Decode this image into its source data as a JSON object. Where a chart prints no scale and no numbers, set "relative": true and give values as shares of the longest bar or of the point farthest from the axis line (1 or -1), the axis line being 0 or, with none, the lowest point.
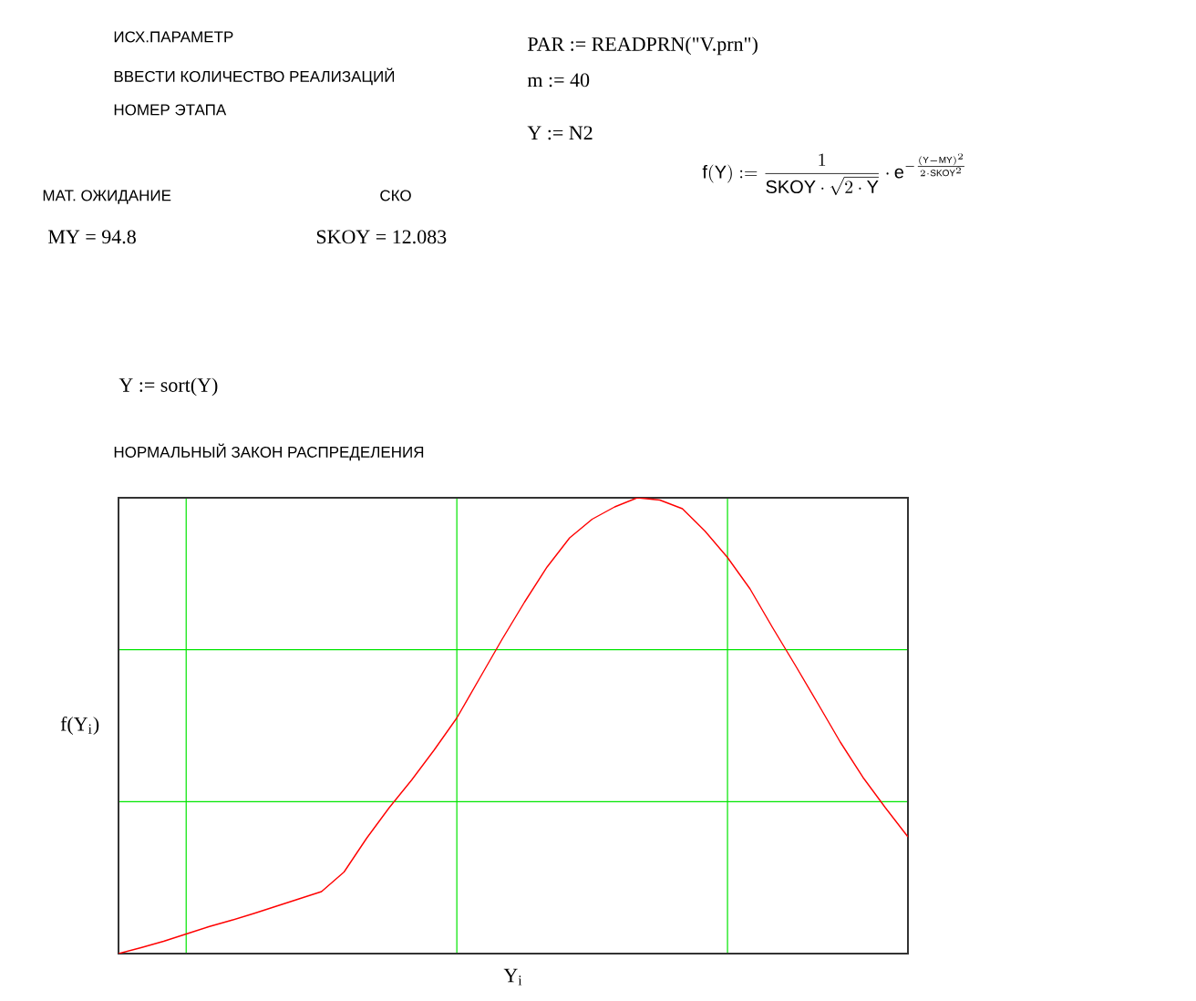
{
  "chart_data": {
    "type": "line",
    "title": "НОРМАЛЬНЫЙ ЗАКОН РАСПРЕДЕЛЕНИЯ",
    "xlabel": "Y$_{i}$",
    "ylabel": "f(Y$_{i}$)",
    "annotations": [
      "ИСХ.ПАРАМЕТР",
      "ВВЕСТИ КОЛИЧЕСТВО РЕАЛИЗАЦИЙ",
      "НОМЕР ЭТАПА",
      "PAR := READPRN(\"V.prn\")",
      "m := 40",
      "Y := N2",
      "МАТ. ОЖИДАНИЕ",
      "СКО",
      "MY = 94.8",
      "SKOY = 12.083",
      "\\mathrm{f(Y)} := \\frac{1}{\\mathrm{SKOY}\\cdot\\sqrt{2\\cdot\\mathrm{Y}}}\\cdot\\mathrm{e}^{-\\frac{(\\mathrm{Y}-\\mathrm{MY})^{2}}{2\\cdot\\mathrm{SKOY}^{2}}}",
      "Y := sort(Y)"
    ],
    "relative": true,
    "tick_labels": false,
    "grid": true,
    "marker": "none",
    "line_style": "solid",
    "categories": [
      null,
      null,
      null,
      null,
      null,
      null,
      null,
      null,
      null,
      null,
      null,
      null,
      null,
      null,
      null,
      null,
      null,
      null,
      null,
      null,
      null,
      null,
      null,
      null,
      null,
      null,
      null,
      null,
      null,
      null,
      null,
      null,
      null,
      null,
      null,
      null
    ],
    "series": [
      {
        "color": "#ff0000",
        "values": [
          0,
          0.013,
          0.027,
          0.043,
          0.059,
          0.073,
          0.088,
          0.104,
          0.12,
          0.136,
          0.179,
          0.253,
          0.32,
          0.381,
          0.447,
          0.517,
          0.603,
          0.689,
          0.771,
          0.848,
          0.912,
          0.953,
          0.98,
          1,
          0.995,
          0.976,
          0.927,
          0.869,
          0.8,
          0.715,
          0.633,
          0.549,
          0.464,
          0.387,
          0.32,
          0.256
        ]
      }
    ]
  }
}
